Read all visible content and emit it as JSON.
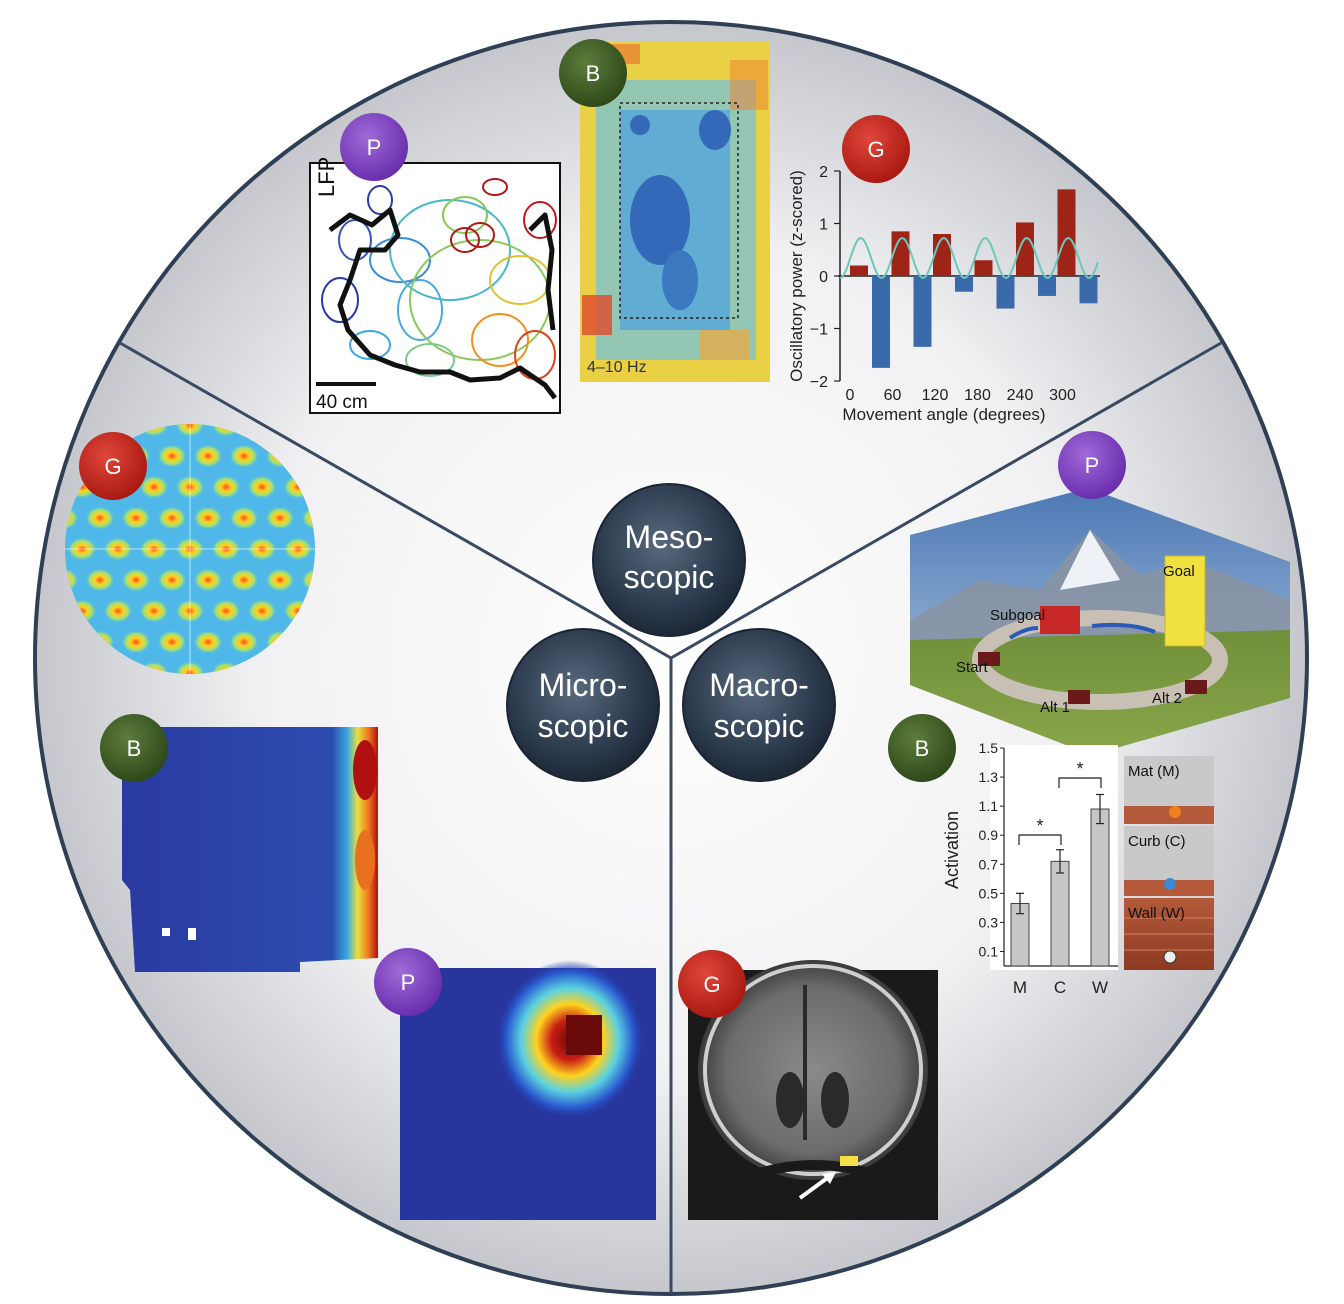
{
  "hubs": {
    "meso": [
      "Meso-",
      "scopic"
    ],
    "micro": [
      "Micro-",
      "scopic"
    ],
    "macro": [
      "Macro-",
      "scopic"
    ]
  },
  "badges": {
    "P_top": "P",
    "B_top": "B",
    "G_top": "G",
    "G_left": "G",
    "B_left": "B",
    "P_bottom": "P",
    "P_right": "P",
    "B_right": "B",
    "G_bottom": "G"
  },
  "badge_colors": {
    "P": "#7b3fbf",
    "B": "#3c5a24",
    "G": "#c0201a"
  },
  "lfp_panel": {
    "label": "LFP",
    "scale_bar": "40 cm"
  },
  "spectrogram_panel": {
    "band_label": "4–10 Hz"
  },
  "oscillation_chart": {
    "chart_data": {
      "type": "bar",
      "ylabel": "Oscillatory power (z-scored)",
      "xlabel": "Movement angle (degrees)",
      "ylim": [
        -2,
        2
      ],
      "yticks": [
        "2",
        "1",
        "0",
        "−1",
        "−2"
      ],
      "xticks": [
        "0",
        "60",
        "120",
        "180",
        "240",
        "300"
      ],
      "series": [
        {
          "values": [
            0.2,
            0.85,
            0.8,
            0.3,
            1.02,
            1.65
          ]
        },
        {
          "values": [
            -1.75,
            -1.35,
            -0.3,
            -0.62,
            -0.38,
            -0.52
          ]
        }
      ],
      "colors": [
        "#9e2418",
        "#3b6aab"
      ]
    }
  },
  "landscape": {
    "labels": {
      "goal": "Goal",
      "subgoal": "Subgoal",
      "start": "Start",
      "alt1": "Alt 1",
      "alt2": "Alt 2"
    }
  },
  "activation_chart": {
    "chart_data": {
      "type": "bar",
      "ylabel": "Activation",
      "categories": [
        "M",
        "C",
        "W"
      ],
      "values": [
        0.43,
        0.72,
        1.08
      ],
      "errors": [
        0.07,
        0.08,
        0.1
      ],
      "ylim": [
        0,
        1.5
      ],
      "yticks": [
        "1.5",
        "1.3",
        "1.1",
        "0.9",
        "0.7",
        "0.5",
        "0.3",
        "0.1"
      ],
      "significance": [
        "*",
        "*"
      ]
    },
    "scene_labels": [
      "Mat (M)",
      "Curb (C)",
      "Wall (W)"
    ]
  }
}
